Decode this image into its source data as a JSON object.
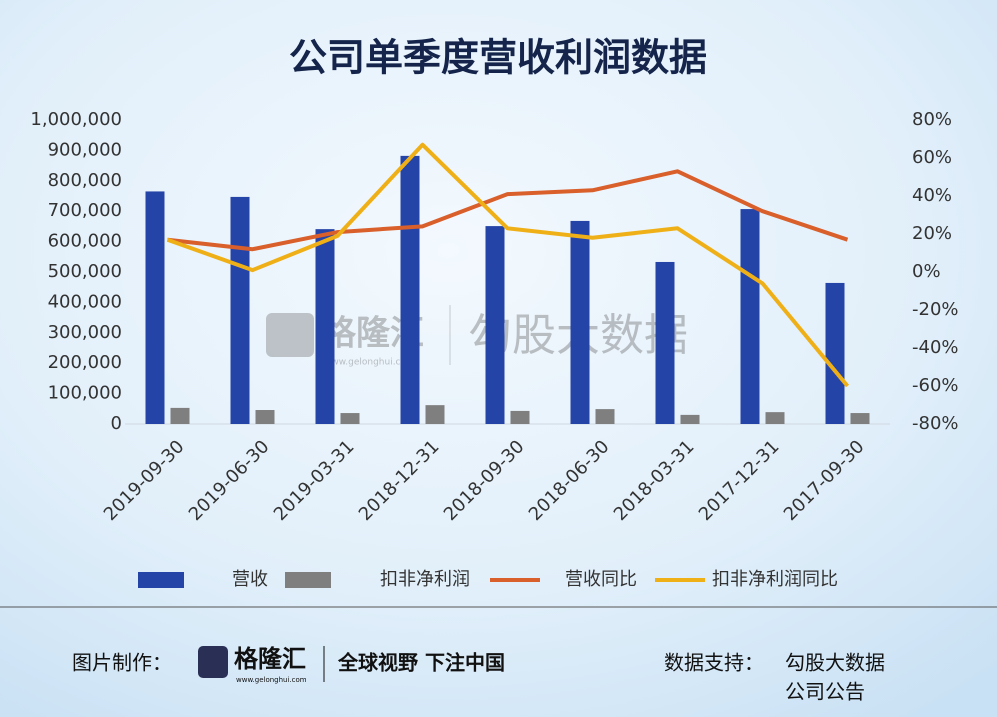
{
  "chart_data": {
    "type": "bar",
    "title": "公司单季度营收利润数据",
    "categories": [
      "2019-09-30",
      "2019-06-30",
      "2019-03-31",
      "2018-12-31",
      "2018-09-30",
      "2018-06-30",
      "2018-03-31",
      "2017-12-31",
      "2017-09-30"
    ],
    "series": [
      {
        "name": "营收",
        "type": "bar",
        "color": "#2544a8",
        "values": [
          765000,
          747000,
          641000,
          882000,
          651000,
          668000,
          533000,
          707000,
          464000
        ]
      },
      {
        "name": "扣非净利润",
        "type": "bar",
        "color": "#7f7f7f",
        "values": [
          53000,
          46000,
          36000,
          62000,
          43000,
          49000,
          30000,
          39000,
          36000
        ]
      },
      {
        "name": "营收同比",
        "type": "line",
        "axis": "y2",
        "color": "#d95f2b",
        "values": [
          17,
          12,
          21,
          24,
          41,
          43,
          53,
          32,
          17
        ]
      },
      {
        "name": "扣非净利润同比",
        "type": "line",
        "axis": "y2",
        "color": "#efb017",
        "values": [
          17,
          1,
          19,
          67,
          23,
          18,
          23,
          -6,
          -60
        ]
      }
    ],
    "ylim": [
      0,
      1000000
    ],
    "yticks": [
      0,
      {
        "value": 100000,
        "label": "100,000"
      },
      {
        "value": 200000,
        "label": "200,000"
      },
      {
        "value": 300000,
        "label": "300,000"
      },
      {
        "value": 400000,
        "label": "400,000"
      },
      {
        "value": 500000,
        "label": "500,000"
      },
      {
        "value": 600000,
        "label": "600,000"
      },
      {
        "value": 700000,
        "label": "700,000"
      },
      {
        "value": 800000,
        "label": "800,000"
      },
      {
        "value": 900000,
        "label": "900,000"
      },
      {
        "value": 1000000,
        "label": "1,000,000"
      }
    ],
    "y2lim": [
      -80,
      80
    ],
    "y2ticks": [
      {
        "value": -80,
        "label": "-80%"
      },
      {
        "value": -60,
        "label": "-60%"
      },
      {
        "value": -40,
        "label": "-40%"
      },
      {
        "value": -20,
        "label": "-20%"
      },
      {
        "value": 0,
        "label": "0%"
      },
      {
        "value": 20,
        "label": "20%"
      },
      {
        "value": 40,
        "label": "40%"
      },
      {
        "value": 60,
        "label": "60%"
      },
      {
        "value": 80,
        "label": "80%"
      }
    ],
    "grid": false,
    "legend": "bottom"
  },
  "watermark": {
    "logo": "格隆汇",
    "url": "www.gelonghui.com",
    "text": "勾股大数据"
  },
  "footer": {
    "made_by_label": "图片制作：",
    "logo": "格隆汇",
    "logo_url": "www.gelonghui.com",
    "slogan": "全球视野 下注中国",
    "source_label": "数据支持：",
    "sources": [
      "勾股大数据",
      "公司公告"
    ]
  }
}
